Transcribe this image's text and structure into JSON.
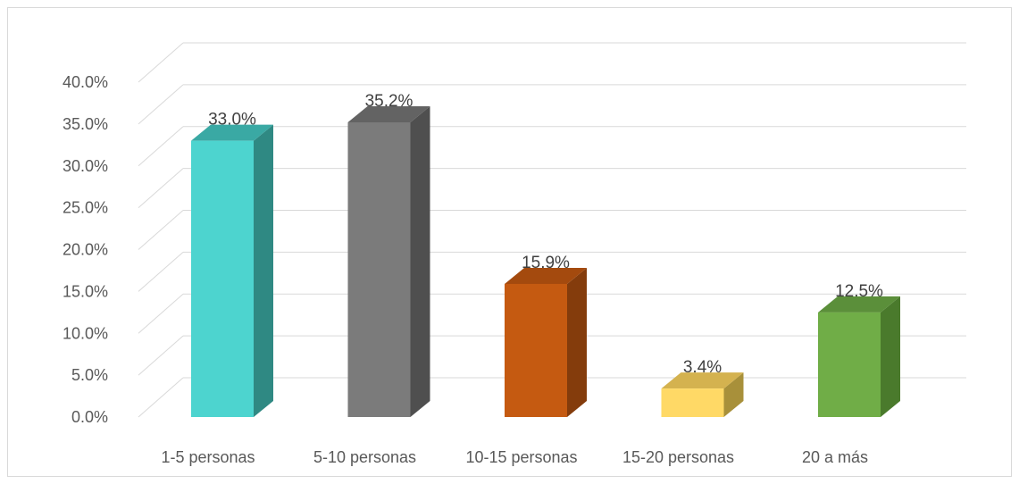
{
  "chart_data": {
    "type": "bar",
    "style": "3d-column",
    "categories": [
      "1-5 personas",
      "5-10 personas",
      "10-15 personas",
      "15-20 personas",
      "20 a más"
    ],
    "values": [
      33.0,
      35.2,
      15.9,
      3.4,
      12.5
    ],
    "data_labels": [
      "33.0%",
      "35.2%",
      "15.9%",
      "3.4%",
      "12.5%"
    ],
    "y_ticks": [
      "0.0%",
      "5.0%",
      "10.0%",
      "15.0%",
      "20.0%",
      "25.0%",
      "30.0%",
      "35.0%",
      "40.0%"
    ],
    "ylim": [
      0,
      40
    ],
    "unit": "%",
    "grid": true,
    "legend": "none",
    "title": "",
    "xlabel": "",
    "ylabel": "",
    "colors": {
      "front": [
        "#4dd4cf",
        "#7b7b7b",
        "#c55a11",
        "#ffd966",
        "#70ad47"
      ],
      "side": [
        "#2f8983",
        "#4f4f4f",
        "#843c0c",
        "#a8903a",
        "#4a7a2c"
      ],
      "top": [
        "#3aa9a4",
        "#636363",
        "#a44a0e",
        "#d4b24f",
        "#5b8f3a"
      ],
      "grid": "#d9d9d9",
      "text": "#595959"
    }
  }
}
